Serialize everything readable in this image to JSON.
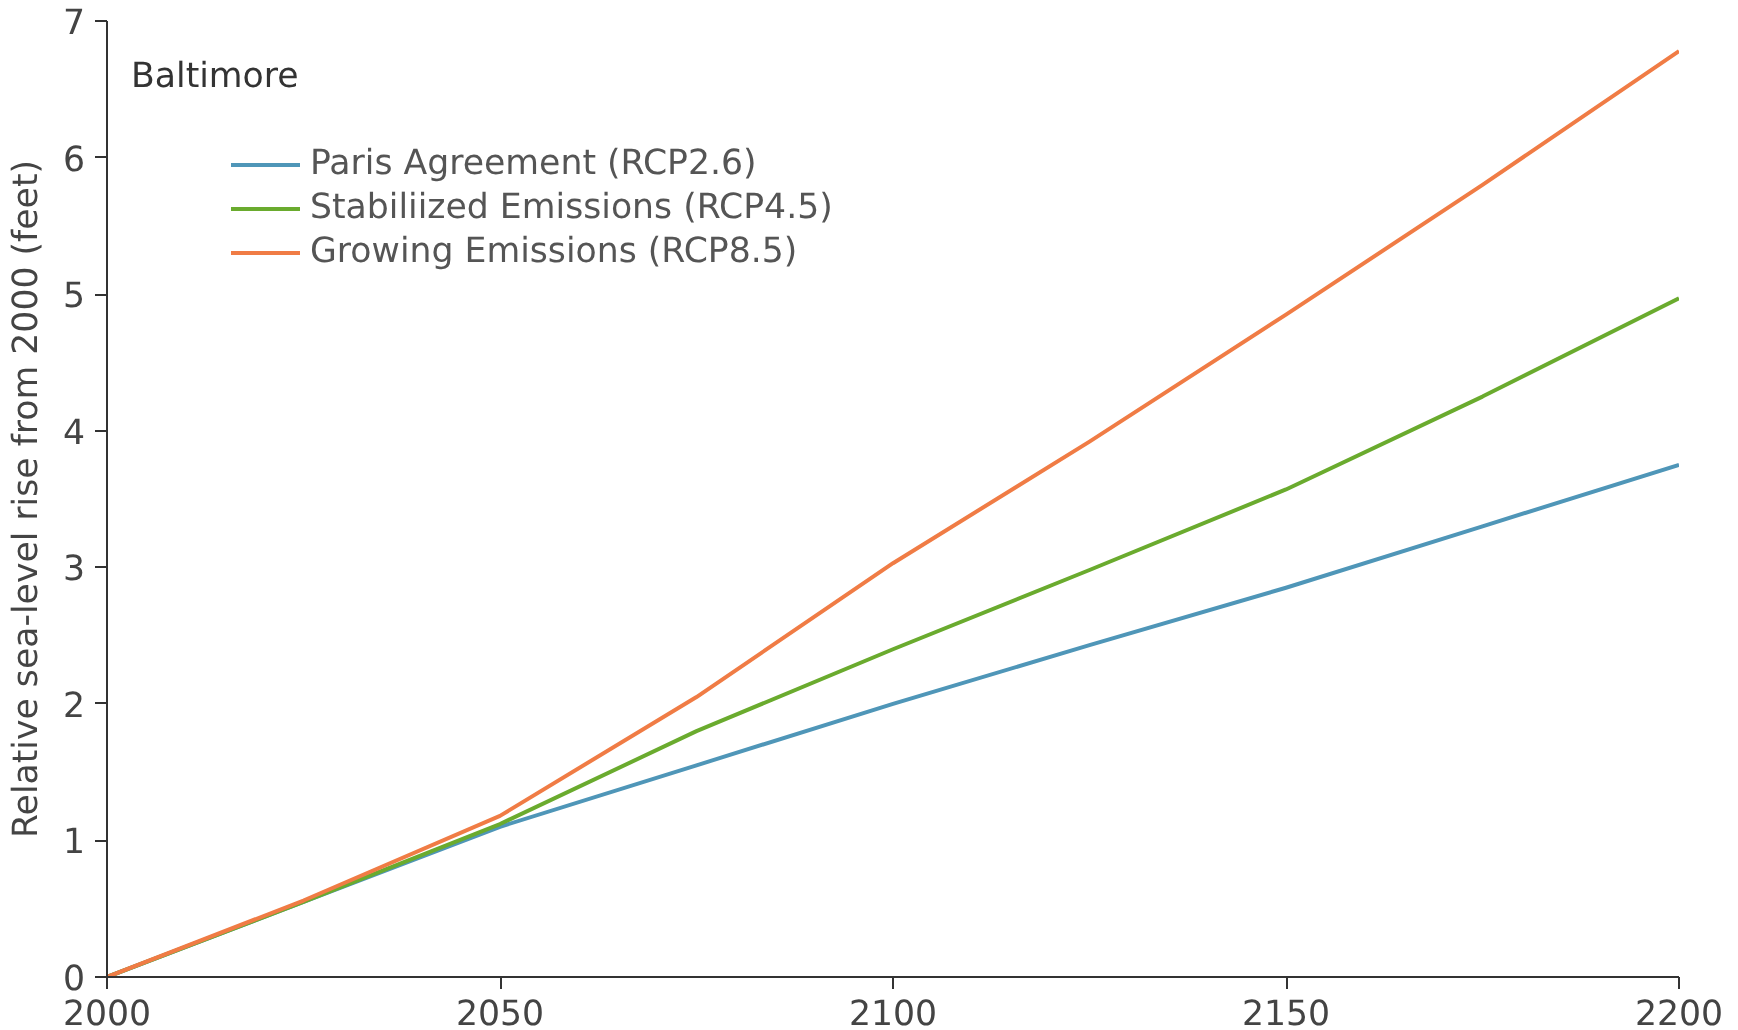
{
  "chart_data": {
    "type": "line",
    "annotations": [
      "Baltimore"
    ],
    "ylabel": "Relative sea-level rise from 2000 (feet)",
    "x": [
      2000,
      2025,
      2050,
      2075,
      2100,
      2125,
      2150,
      2175,
      2200
    ],
    "series": [
      {
        "name": "Paris Agreement (RCP2.6)",
        "color": "#4f96b8",
        "values": [
          0,
          0.55,
          1.1,
          1.55,
          2.0,
          2.43,
          2.85,
          3.3,
          3.75
        ]
      },
      {
        "name": "Stabiliized Emissions (RCP4.5)",
        "color": "#6aab2e",
        "values": [
          0,
          0.55,
          1.12,
          1.8,
          2.4,
          2.98,
          3.57,
          4.25,
          4.97
        ]
      },
      {
        "name": "Growing Emissions (RCP8.5)",
        "color": "#f07c45",
        "values": [
          0,
          0.56,
          1.18,
          2.05,
          3.03,
          3.92,
          4.85,
          5.8,
          6.78
        ]
      }
    ],
    "xlim": [
      2000,
      2200
    ],
    "xticks": [
      2000,
      2050,
      2100,
      2150,
      2200
    ],
    "ylim": [
      0,
      7
    ],
    "yticks": [
      0,
      1,
      2,
      3,
      4,
      5,
      6,
      7
    ],
    "grid": false,
    "legend": "top left",
    "marker": "none",
    "line_style": "solid"
  }
}
